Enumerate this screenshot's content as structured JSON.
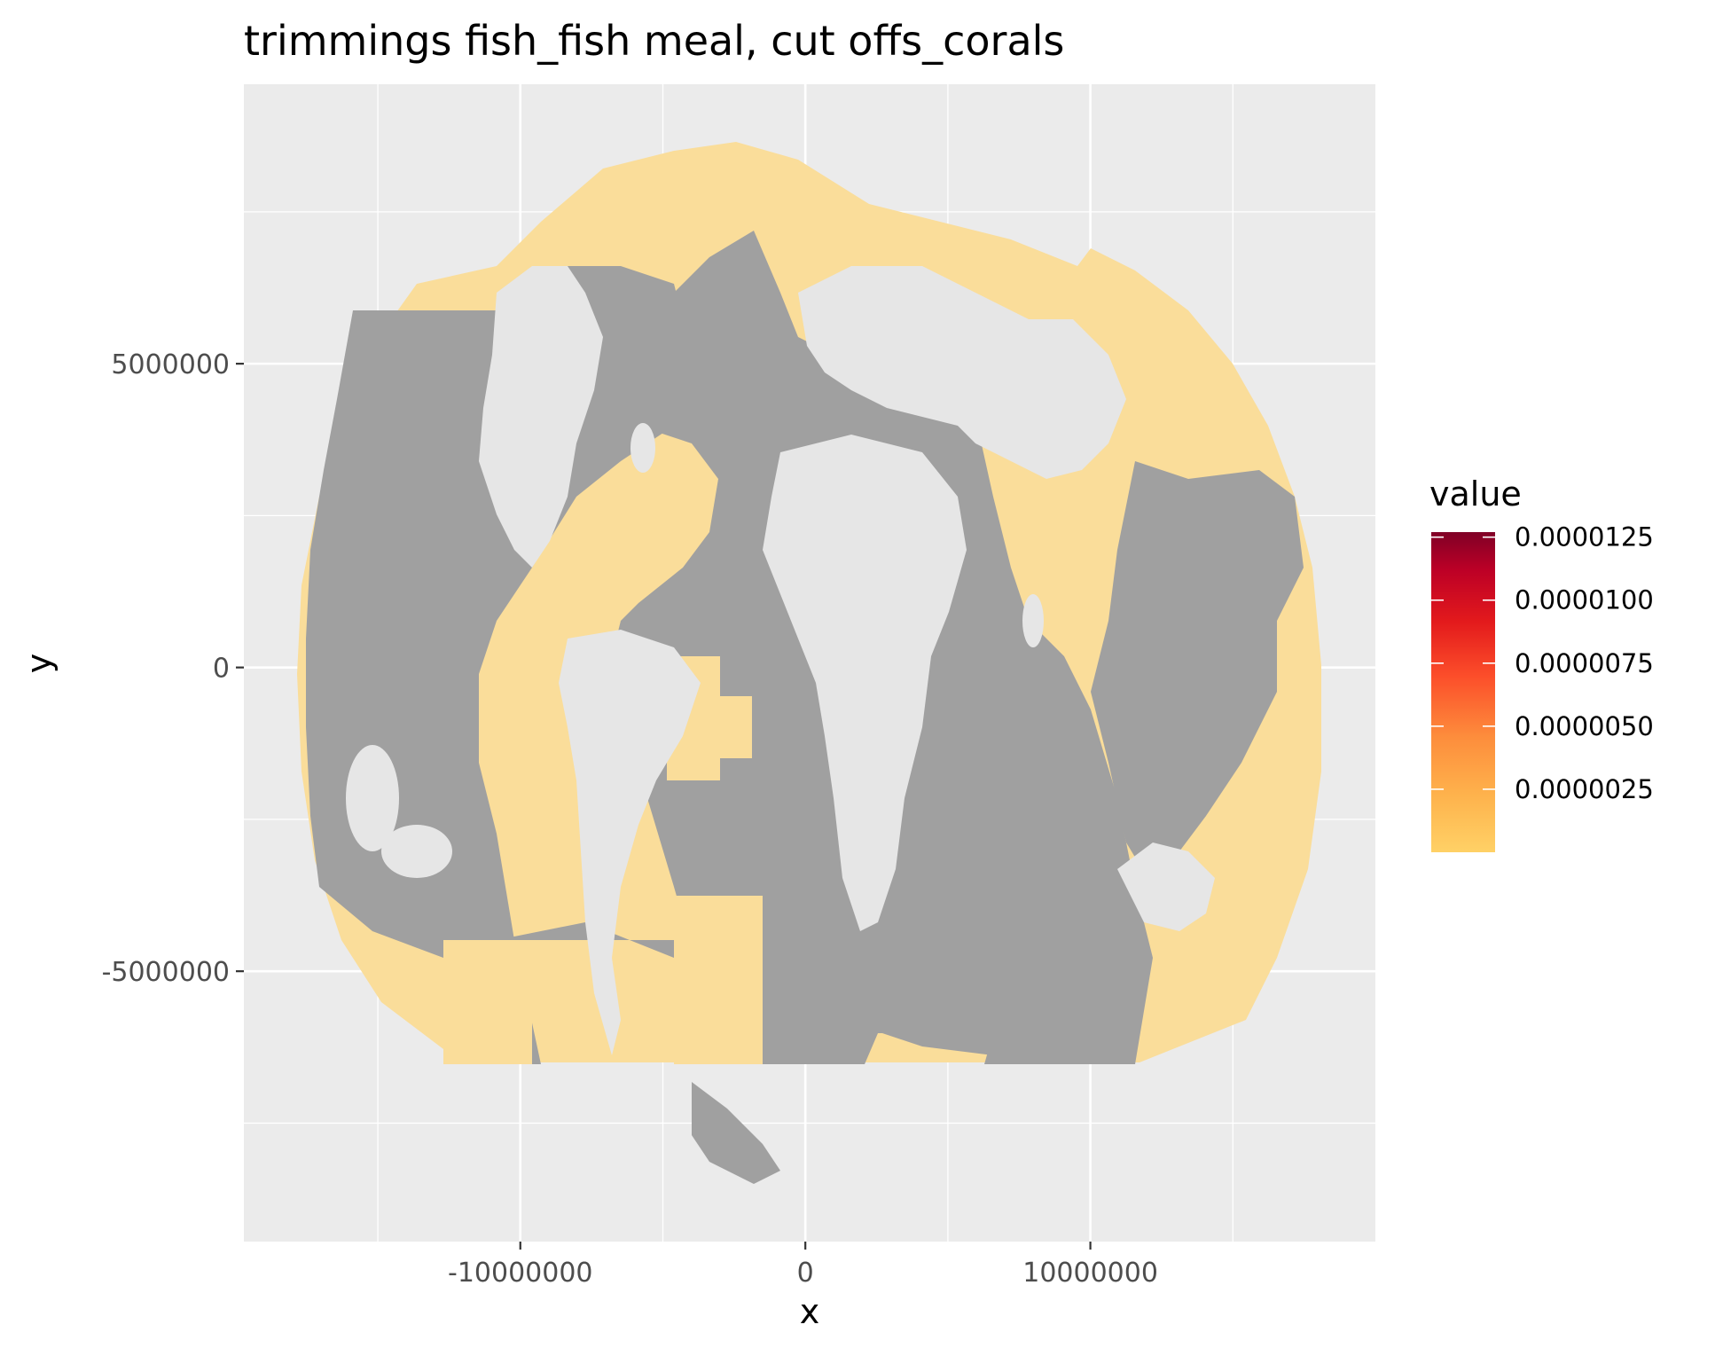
{
  "chart_data": {
    "type": "heatmap",
    "title": "trimmings fish_fish meal, cut offs_corals",
    "xlabel": "x",
    "ylabel": "y",
    "xlim": [
      -19700000,
      20000000
    ],
    "ylim": [
      -9450000,
      9600000
    ],
    "x_ticks": [
      {
        "value": -10000000,
        "label": "-10000000"
      },
      {
        "value": 0,
        "label": "0"
      },
      {
        "value": 10000000,
        "label": "10000000"
      }
    ],
    "y_ticks": [
      {
        "value": -5000000,
        "label": "-5000000"
      },
      {
        "value": 0,
        "label": "0"
      },
      {
        "value": 5000000,
        "label": "5000000"
      }
    ],
    "grid": true,
    "legend": {
      "title": "value",
      "placement": "right",
      "min": 0,
      "max": 1.27e-05,
      "ticks": [
        {
          "value": 2.5e-06,
          "label": "0.0000025"
        },
        {
          "value": 5e-06,
          "label": "0.0000050"
        },
        {
          "value": 7.5e-06,
          "label": "0.0000075"
        },
        {
          "value": 1e-05,
          "label": "0.0000100"
        },
        {
          "value": 1.25e-05,
          "label": "0.0000125"
        }
      ],
      "colors": [
        "#ffd166",
        "#feb24c",
        "#fd8d3c",
        "#fc4e2a",
        "#e31a1c",
        "#bd0026",
        "#800026"
      ]
    },
    "layers": [
      {
        "name": "ocean-no-data",
        "color": "#a0a0a0"
      },
      {
        "name": "land",
        "color": "#e6e6e6"
      },
      {
        "name": "low-value-cells",
        "color": "#fadd9a",
        "value": 0
      }
    ]
  },
  "colors": {
    "panel": "#ebebeb",
    "grid_major": "#ffffff",
    "ocean": "#a0a0a0",
    "land": "#e6e6e6",
    "value_low": "#fadd9a"
  }
}
